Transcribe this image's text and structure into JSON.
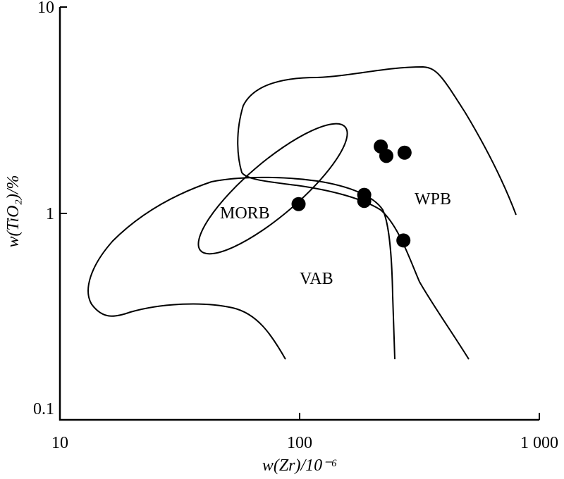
{
  "chart_data": {
    "type": "scatter",
    "xlabel": "w(Zr)/10⁻⁶",
    "ylabel": "w(TiO₂)/%",
    "log_x": true,
    "log_y": true,
    "xlim": [
      10,
      1000
    ],
    "ylim": [
      0.1,
      10
    ],
    "xticks": [
      10,
      100,
      {
        "value": 1000,
        "label": "1 000"
      }
    ],
    "yticks": [
      0.1,
      1,
      10
    ],
    "color": "#000000",
    "x": [
      99,
      186,
      186,
      218,
      230,
      274,
      271
    ],
    "values": [
      1.11,
      1.23,
      1.15,
      2.11,
      1.9,
      1.97,
      0.74
    ],
    "annotations": [
      "MORB",
      "WPB",
      "VAB"
    ]
  }
}
